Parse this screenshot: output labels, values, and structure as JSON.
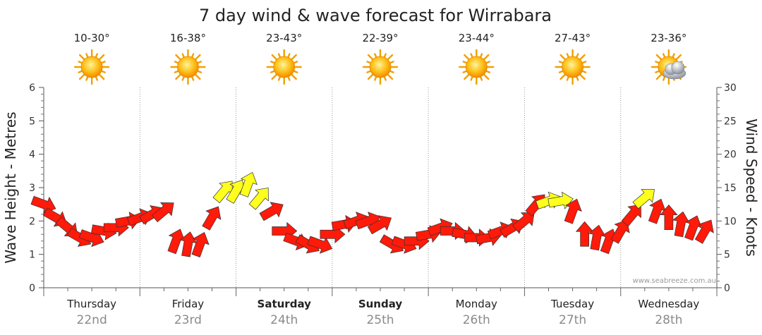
{
  "colors": {
    "strong_wind": "#ff1a0a",
    "moderate_wind": "#ffff1e",
    "arrow_stroke": "#333333",
    "grid": "#9a9a9a",
    "date_text": "#8a8a8a",
    "sun": "#ffbe14"
  },
  "chart_data": {
    "type": "line",
    "title": "7 day wind & wave forecast for Wirrabara",
    "ylabel_left": "Wave Height - Metres",
    "ylabel_right": "Wind Speed - Knots",
    "ylim_left": [
      0,
      6
    ],
    "ylim_right": [
      0,
      30
    ],
    "yticks_left": [
      "0",
      "1",
      "2",
      "3",
      "4",
      "5",
      "6"
    ],
    "yticks_right": [
      "0",
      "5",
      "10",
      "15",
      "20",
      "25",
      "30"
    ],
    "grid": true,
    "credit": "www.seabreeze.com.au",
    "days": [
      {
        "name": "Thursday",
        "date": "22nd",
        "bold": false,
        "temp": "10-30°",
        "icon": "sun-icon"
      },
      {
        "name": "Friday",
        "date": "23rd",
        "bold": false,
        "temp": "16-38°",
        "icon": "sun-icon"
      },
      {
        "name": "Saturday",
        "date": "24th",
        "bold": true,
        "temp": "23-43°",
        "icon": "sun-icon"
      },
      {
        "name": "Sunday",
        "date": "25th",
        "bold": true,
        "temp": "22-39°",
        "icon": "sun-icon"
      },
      {
        "name": "Monday",
        "date": "26th",
        "bold": false,
        "temp": "23-44°",
        "icon": "sun-icon"
      },
      {
        "name": "Tuesday",
        "date": "27th",
        "bold": false,
        "temp": "27-43°",
        "icon": "sun-icon"
      },
      {
        "name": "Wednesday",
        "date": "28th",
        "bold": false,
        "temp": "23-36°",
        "icon": "partly-cloudy-icon"
      }
    ],
    "series": [
      {
        "kind": "wind",
        "x_days": [
          0,
          0.125,
          0.25,
          0.375,
          0.5,
          0.625,
          0.75,
          0.875,
          1.0,
          1.125,
          1.25,
          1.375,
          1.5,
          1.625,
          1.75,
          1.875,
          2.0,
          2.125,
          2.25,
          2.375,
          2.5,
          2.625,
          2.75,
          2.875,
          3.0,
          3.125,
          3.25,
          3.375,
          3.5,
          3.625,
          3.75,
          3.875,
          4.0,
          4.125,
          4.25,
          4.375,
          4.5,
          4.625,
          4.75,
          4.875,
          5.0,
          5.125,
          5.25,
          5.375,
          5.5,
          5.625,
          5.75,
          5.875,
          6.0,
          6.125,
          6.25,
          6.375,
          6.5,
          6.625,
          6.75,
          6.875
        ],
        "speed_knots": [
          12.5,
          10.5,
          9,
          7.5,
          7.5,
          8.5,
          9,
          10,
          10.5,
          11,
          11.5,
          7,
          6.5,
          6.5,
          10.5,
          14.5,
          14.5,
          15.5,
          13.5,
          11.5,
          8.5,
          7,
          6.5,
          6.5,
          8,
          9.5,
          10,
          10,
          9.5,
          6.5,
          6.5,
          7,
          8,
          9,
          8.5,
          8,
          7.5,
          7.5,
          8.5,
          9,
          10,
          12.5,
          13,
          13,
          11.5,
          8,
          7.5,
          7,
          8.5,
          11,
          13.5,
          11.5,
          10.5,
          9.5,
          9,
          8.5
        ],
        "direction_deg": [
          290,
          300,
          310,
          300,
          290,
          280,
          270,
          260,
          250,
          240,
          230,
          200,
          190,
          200,
          210,
          220,
          210,
          200,
          220,
          240,
          270,
          290,
          300,
          290,
          270,
          260,
          250,
          250,
          240,
          300,
          290,
          270,
          260,
          250,
          270,
          280,
          270,
          260,
          250,
          240,
          230,
          220,
          250,
          260,
          200,
          180,
          190,
          200,
          210,
          220,
          230,
          200,
          180,
          190,
          200,
          210
        ]
      }
    ]
  }
}
